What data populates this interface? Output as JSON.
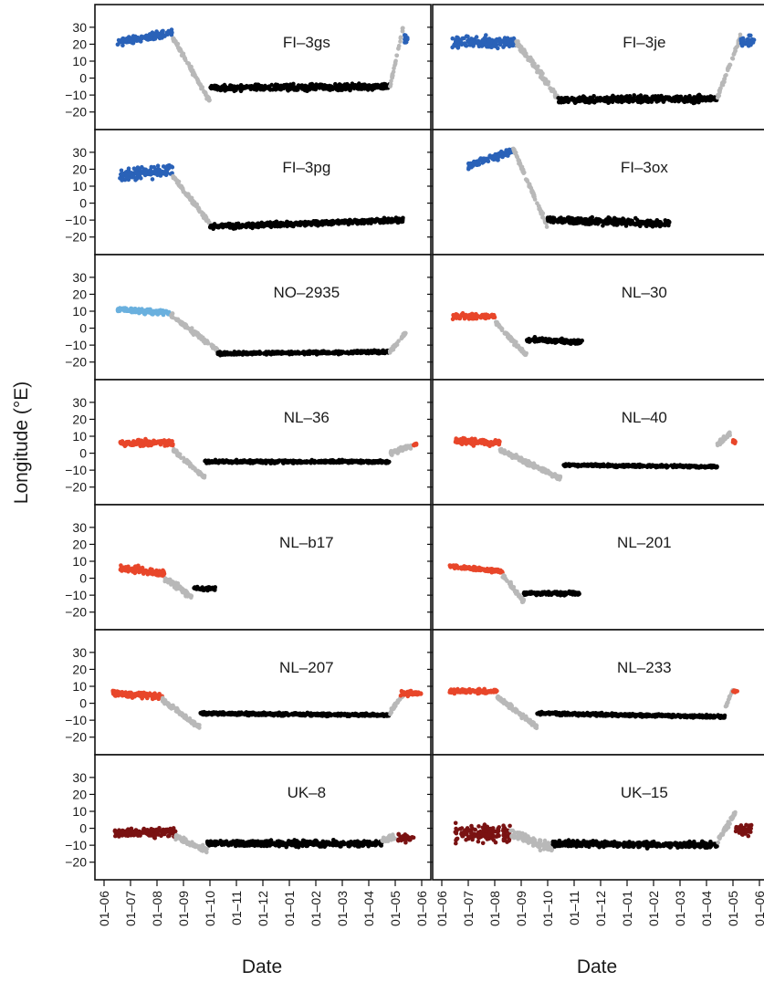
{
  "y_axis_label": "Longitude (°E)",
  "x_axis_labels": [
    "Date",
    "Date"
  ],
  "x_ticks": [
    "01–06",
    "01–07",
    "01–08",
    "01–09",
    "01–10",
    "01–11",
    "01–12",
    "01–01",
    "01–02",
    "01–03",
    "01–04",
    "01–05",
    "01–06"
  ],
  "y_ticks": [
    "30",
    "20",
    "10",
    "0",
    "−10",
    "−20"
  ],
  "colors": {
    "breeding_blue": "#2a62b8",
    "breeding_lightblue": "#6ab0de",
    "breeding_red": "#e8462a",
    "breeding_darkred": "#7a1212",
    "migration": "#b8b8b8",
    "wintering": "#000000"
  },
  "chart_data": {
    "type": "scatter",
    "xlabel": "Date",
    "ylabel": "Longitude (°E)",
    "ylim": [
      -25,
      38
    ],
    "xlim": [
      "01-06",
      "01-06 (following year)"
    ],
    "x_unit": "months from 1 June (0 = 01-06, 12 = 01-06 next year)",
    "grid": false,
    "panels": [
      {
        "title": "FI–3gs",
        "breeding_color": "blue",
        "segments": [
          {
            "phase": "breeding",
            "x": [
              0.5,
              2.6
            ],
            "y": [
              21,
              27
            ],
            "spread": 3
          },
          {
            "phase": "migration",
            "x": [
              2.6,
              4.0
            ],
            "y": [
              24,
              -14
            ],
            "spread": 2
          },
          {
            "phase": "wintering",
            "x": [
              4.0,
              10.8
            ],
            "y": [
              -6,
              -5
            ],
            "spread": 2.5
          },
          {
            "phase": "migration",
            "x": [
              10.8,
              11.3
            ],
            "y": [
              -5,
              30
            ],
            "spread": 2
          },
          {
            "phase": "breeding",
            "x": [
              11.3,
              11.5
            ],
            "y": [
              24,
              22
            ],
            "spread": 4
          }
        ]
      },
      {
        "title": "FI–3je",
        "breeding_color": "blue",
        "segments": [
          {
            "phase": "breeding",
            "x": [
              0.4,
              2.8
            ],
            "y": [
              21,
              21
            ],
            "spread": 5
          },
          {
            "phase": "migration",
            "x": [
              2.8,
              4.4
            ],
            "y": [
              22,
              -12
            ],
            "spread": 3
          },
          {
            "phase": "wintering",
            "x": [
              4.4,
              10.4
            ],
            "y": [
              -13,
              -12
            ],
            "spread": 3
          },
          {
            "phase": "migration",
            "x": [
              10.4,
              11.3
            ],
            "y": [
              -12,
              25
            ],
            "spread": 2
          },
          {
            "phase": "breeding",
            "x": [
              11.3,
              11.8
            ],
            "y": [
              22,
              22
            ],
            "spread": 4
          }
        ]
      },
      {
        "title": "FI–3pg",
        "breeding_color": "blue",
        "segments": [
          {
            "phase": "breeding",
            "x": [
              0.6,
              2.6
            ],
            "y": [
              16,
              20
            ],
            "spread": 5
          },
          {
            "phase": "migration",
            "x": [
              2.6,
              4.0
            ],
            "y": [
              16,
              -12
            ],
            "spread": 2
          },
          {
            "phase": "wintering",
            "x": [
              4.0,
              11.3
            ],
            "y": [
              -14,
              -10
            ],
            "spread": 2
          }
        ]
      },
      {
        "title": "FI–3ox",
        "breeding_color": "blue",
        "segments": [
          {
            "phase": "breeding",
            "x": [
              1.0,
              2.7
            ],
            "y": [
              22,
              31
            ],
            "spread": 3
          },
          {
            "phase": "migration",
            "x": [
              2.7,
              4.0
            ],
            "y": [
              32,
              -14
            ],
            "spread": 2
          },
          {
            "phase": "wintering",
            "x": [
              4.0,
              8.6
            ],
            "y": [
              -10,
              -12
            ],
            "spread": 3
          }
        ]
      },
      {
        "title": "NO–2935",
        "breeding_color": "lightblue",
        "segments": [
          {
            "phase": "breeding",
            "x": [
              0.5,
              2.5
            ],
            "y": [
              11,
              9
            ],
            "spread": 2
          },
          {
            "phase": "migration",
            "x": [
              2.5,
              4.3
            ],
            "y": [
              8,
              -13
            ],
            "spread": 2
          },
          {
            "phase": "wintering",
            "x": [
              4.3,
              10.8
            ],
            "y": [
              -15,
              -14
            ],
            "spread": 1.2
          },
          {
            "phase": "migration",
            "x": [
              10.8,
              11.4
            ],
            "y": [
              -14,
              -3
            ],
            "spread": 1.5
          }
        ]
      },
      {
        "title": "NL–30",
        "breeding_color": "red",
        "segments": [
          {
            "phase": "breeding",
            "x": [
              0.4,
              2.0
            ],
            "y": [
              7,
              7
            ],
            "spread": 2.5
          },
          {
            "phase": "migration",
            "x": [
              2.0,
              3.2
            ],
            "y": [
              4,
              -16
            ],
            "spread": 2
          },
          {
            "phase": "wintering",
            "x": [
              3.2,
              5.3
            ],
            "y": [
              -7,
              -8
            ],
            "spread": 2
          }
        ]
      },
      {
        "title": "NL–36",
        "breeding_color": "red",
        "segments": [
          {
            "phase": "breeding",
            "x": [
              0.6,
              2.6
            ],
            "y": [
              6,
              6
            ],
            "spread": 2.5
          },
          {
            "phase": "migration",
            "x": [
              2.6,
              3.8
            ],
            "y": [
              2,
              -14
            ],
            "spread": 2
          },
          {
            "phase": "wintering",
            "x": [
              3.8,
              10.8
            ],
            "y": [
              -5,
              -5
            ],
            "spread": 1.2
          },
          {
            "phase": "migration",
            "x": [
              10.8,
              11.6
            ],
            "y": [
              0,
              4
            ],
            "spread": 2
          },
          {
            "phase": "breeding",
            "x": [
              11.7,
              11.8
            ],
            "y": [
              5,
              5
            ],
            "spread": 1
          }
        ]
      },
      {
        "title": "NL–40",
        "breeding_color": "red",
        "segments": [
          {
            "phase": "breeding",
            "x": [
              0.5,
              2.2
            ],
            "y": [
              7,
              6
            ],
            "spread": 2.5
          },
          {
            "phase": "migration",
            "x": [
              2.2,
              4.5
            ],
            "y": [
              2,
              -15
            ],
            "spread": 2
          },
          {
            "phase": "wintering",
            "x": [
              4.6,
              10.4
            ],
            "y": [
              -7,
              -8
            ],
            "spread": 1
          },
          {
            "phase": "migration",
            "x": [
              10.4,
              10.9
            ],
            "y": [
              5,
              12
            ],
            "spread": 2
          },
          {
            "phase": "breeding",
            "x": [
              11.0,
              11.1
            ],
            "y": [
              7,
              7
            ],
            "spread": 2
          }
        ]
      },
      {
        "title": "NL–b17",
        "breeding_color": "red",
        "segments": [
          {
            "phase": "breeding",
            "x": [
              0.6,
              2.3
            ],
            "y": [
              6,
              3
            ],
            "spread": 3
          },
          {
            "phase": "migration",
            "x": [
              2.3,
              3.4
            ],
            "y": [
              0,
              -12
            ],
            "spread": 3
          },
          {
            "phase": "wintering",
            "x": [
              3.4,
              4.2
            ],
            "y": [
              -6,
              -6
            ],
            "spread": 1.5
          }
        ]
      },
      {
        "title": "NL–201",
        "breeding_color": "red",
        "segments": [
          {
            "phase": "breeding",
            "x": [
              0.3,
              2.3
            ],
            "y": [
              7,
              4
            ],
            "spread": 1.5
          },
          {
            "phase": "migration",
            "x": [
              2.3,
              3.1
            ],
            "y": [
              2,
              -14
            ],
            "spread": 2
          },
          {
            "phase": "wintering",
            "x": [
              3.1,
              5.2
            ],
            "y": [
              -9,
              -9
            ],
            "spread": 1.5
          }
        ]
      },
      {
        "title": "NL–207",
        "breeding_color": "red",
        "segments": [
          {
            "phase": "breeding",
            "x": [
              0.3,
              2.2
            ],
            "y": [
              6,
              4
            ],
            "spread": 2.5
          },
          {
            "phase": "migration",
            "x": [
              2.2,
              3.6
            ],
            "y": [
              2,
              -14
            ],
            "spread": 2
          },
          {
            "phase": "wintering",
            "x": [
              3.6,
              10.8
            ],
            "y": [
              -6,
              -7
            ],
            "spread": 1.2
          },
          {
            "phase": "migration",
            "x": [
              10.8,
              11.3
            ],
            "y": [
              -6,
              6
            ],
            "spread": 2
          },
          {
            "phase": "breeding",
            "x": [
              11.2,
              12.0
            ],
            "y": [
              6,
              6
            ],
            "spread": 2.5
          }
        ]
      },
      {
        "title": "NL–233",
        "breeding_color": "red",
        "segments": [
          {
            "phase": "breeding",
            "x": [
              0.3,
              2.1
            ],
            "y": [
              7,
              7
            ],
            "spread": 1.8
          },
          {
            "phase": "migration",
            "x": [
              2.1,
              3.6
            ],
            "y": [
              4,
              -14
            ],
            "spread": 2
          },
          {
            "phase": "wintering",
            "x": [
              3.6,
              10.7
            ],
            "y": [
              -6,
              -8
            ],
            "spread": 1.2
          },
          {
            "phase": "migration",
            "x": [
              10.7,
              11.0
            ],
            "y": [
              -3,
              8
            ],
            "spread": 1.5
          },
          {
            "phase": "breeding",
            "x": [
              11.0,
              11.2
            ],
            "y": [
              7,
              7
            ],
            "spread": 1
          }
        ]
      },
      {
        "title": "UK–8",
        "breeding_color": "darkred",
        "segments": [
          {
            "phase": "breeding",
            "x": [
              0.4,
              2.7
            ],
            "y": [
              -3,
              -2
            ],
            "spread": 4
          },
          {
            "phase": "migration",
            "x": [
              2.7,
              3.9
            ],
            "y": [
              -5,
              -13
            ],
            "spread": 2.5
          },
          {
            "phase": "wintering",
            "x": [
              3.9,
              10.5
            ],
            "y": [
              -9,
              -9
            ],
            "spread": 2.5
          },
          {
            "phase": "migration",
            "x": [
              10.5,
              11.0
            ],
            "y": [
              -7,
              -5
            ],
            "spread": 2.5
          },
          {
            "phase": "breeding",
            "x": [
              11.1,
              11.7
            ],
            "y": [
              -6,
              -6
            ],
            "spread": 3
          }
        ]
      },
      {
        "title": "UK–15",
        "breeding_color": "darkred",
        "segments": [
          {
            "phase": "breeding",
            "x": [
              0.5,
              2.6
            ],
            "y": [
              -3,
              -3
            ],
            "spread": 7
          },
          {
            "phase": "migration",
            "x": [
              2.6,
              4.2
            ],
            "y": [
              -3,
              -12
            ],
            "spread": 4
          },
          {
            "phase": "wintering",
            "x": [
              4.2,
              10.4
            ],
            "y": [
              -9,
              -10
            ],
            "spread": 2.5
          },
          {
            "phase": "migration",
            "x": [
              10.4,
              11.1
            ],
            "y": [
              -8,
              10
            ],
            "spread": 3
          },
          {
            "phase": "breeding",
            "x": [
              11.1,
              11.7
            ],
            "y": [
              -1,
              -1
            ],
            "spread": 5
          }
        ]
      }
    ]
  }
}
